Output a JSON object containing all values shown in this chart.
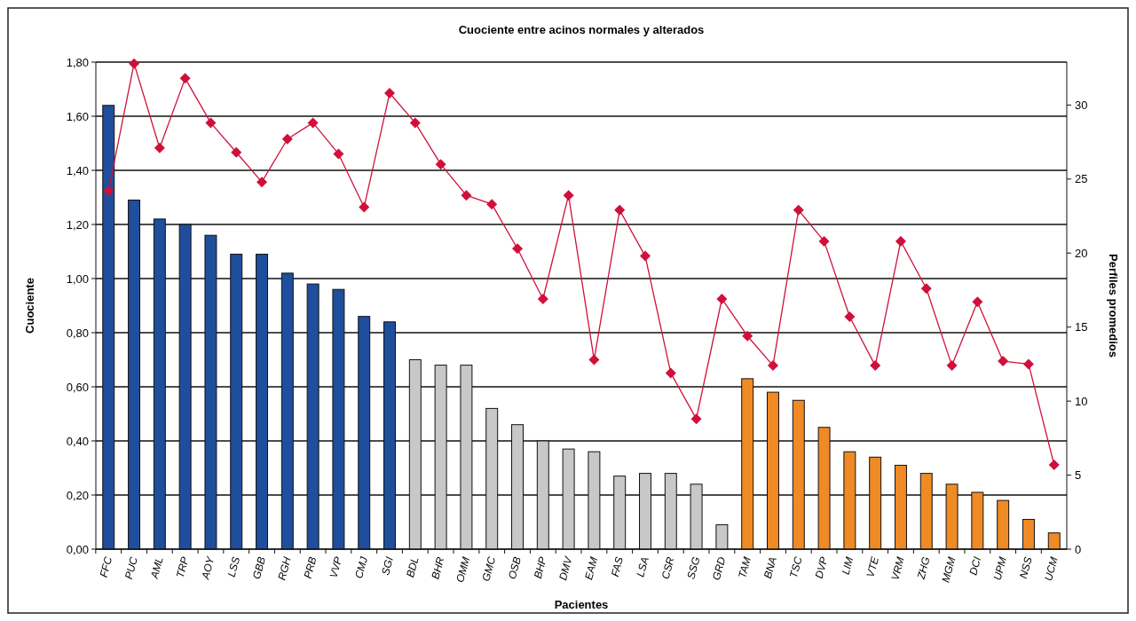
{
  "chart_data": {
    "type": "bar",
    "title": "Cuociente entre acinos normales y alterados",
    "xlabel": "Pacientes",
    "ylabel": "Cuociente",
    "y2label": "Perfiles promedios",
    "categories": [
      "FFC",
      "PUC",
      "AML",
      "TRP",
      "AOY",
      "LSS",
      "GBB",
      "RGH",
      "PRB",
      "VVP",
      "CMJ",
      "SGI",
      "BDL",
      "BHR",
      "OMM",
      "GMC",
      "OSB",
      "BHP",
      "DMV",
      "EAM",
      "FAS",
      "LSA",
      "CSR",
      "SSG",
      "GRD",
      "TAM",
      "BNA",
      "TSC",
      "DVP",
      "LIM",
      "VTE",
      "VRM",
      "ZHG",
      "MGM",
      "DCI",
      "UPM",
      "NSS",
      "UCM"
    ],
    "series": [
      {
        "values": [
          1.64,
          1.29,
          1.22,
          1.2,
          1.16,
          1.09,
          1.09,
          1.02,
          0.98,
          0.96,
          0.86,
          0.84,
          0.7,
          0.68,
          0.68,
          0.52,
          0.46,
          0.4,
          0.37,
          0.36,
          0.27,
          0.28,
          0.28,
          0.24,
          0.09,
          0.63,
          0.58,
          0.55,
          0.45,
          0.36,
          0.34,
          0.31,
          0.28,
          0.24,
          0.21,
          0.18,
          0.11,
          0.06
        ],
        "colors": [
          "#1f4e9c",
          "#1f4e9c",
          "#1f4e9c",
          "#1f4e9c",
          "#1f4e9c",
          "#1f4e9c",
          "#1f4e9c",
          "#1f4e9c",
          "#1f4e9c",
          "#1f4e9c",
          "#1f4e9c",
          "#1f4e9c",
          "#c8c8c8",
          "#c8c8c8",
          "#c8c8c8",
          "#c8c8c8",
          "#c8c8c8",
          "#c8c8c8",
          "#c8c8c8",
          "#c8c8c8",
          "#c8c8c8",
          "#c8c8c8",
          "#c8c8c8",
          "#c8c8c8",
          "#c8c8c8",
          "#f08a24",
          "#f08a24",
          "#f08a24",
          "#f08a24",
          "#f08a24",
          "#f08a24",
          "#f08a24",
          "#f08a24",
          "#f08a24",
          "#f08a24",
          "#f08a24",
          "#f08a24",
          "#f08a24"
        ]
      },
      {
        "type": "line",
        "axis": "y2",
        "color": "#d0103a",
        "marker": "diamond",
        "values": [
          24.2,
          32.8,
          27.1,
          31.8,
          28.8,
          26.8,
          24.8,
          27.7,
          28.8,
          26.7,
          23.1,
          30.8,
          28.8,
          26,
          23.9,
          23.3,
          20.3,
          16.9,
          23.9,
          12.8,
          22.9,
          19.8,
          11.9,
          8.8,
          16.9,
          14.4,
          12.4,
          22.9,
          20.8,
          15.7,
          12.4,
          20.8,
          17.6,
          12.4,
          16.7,
          12.7,
          12.5,
          5.7
        ]
      }
    ],
    "ylim": [
      0,
      1.8
    ],
    "yticks": [
      {
        "value": 0,
        "label": "0,00"
      },
      {
        "value": 0.2,
        "label": "0,20"
      },
      {
        "value": 0.4,
        "label": "0,40"
      },
      {
        "value": 0.6,
        "label": "0,60"
      },
      {
        "value": 0.8,
        "label": "0,80"
      },
      {
        "value": 1,
        "label": "1,00"
      },
      {
        "value": 1.2,
        "label": "1,20"
      },
      {
        "value": 1.4,
        "label": "1,40"
      },
      {
        "value": 1.6,
        "label": "1,60"
      },
      {
        "value": 1.8,
        "label": "1,80"
      }
    ],
    "y2lim": [
      0,
      32.9
    ],
    "y2ticks": [
      0,
      5,
      10,
      15,
      20,
      25,
      30
    ],
    "grid": "y"
  }
}
